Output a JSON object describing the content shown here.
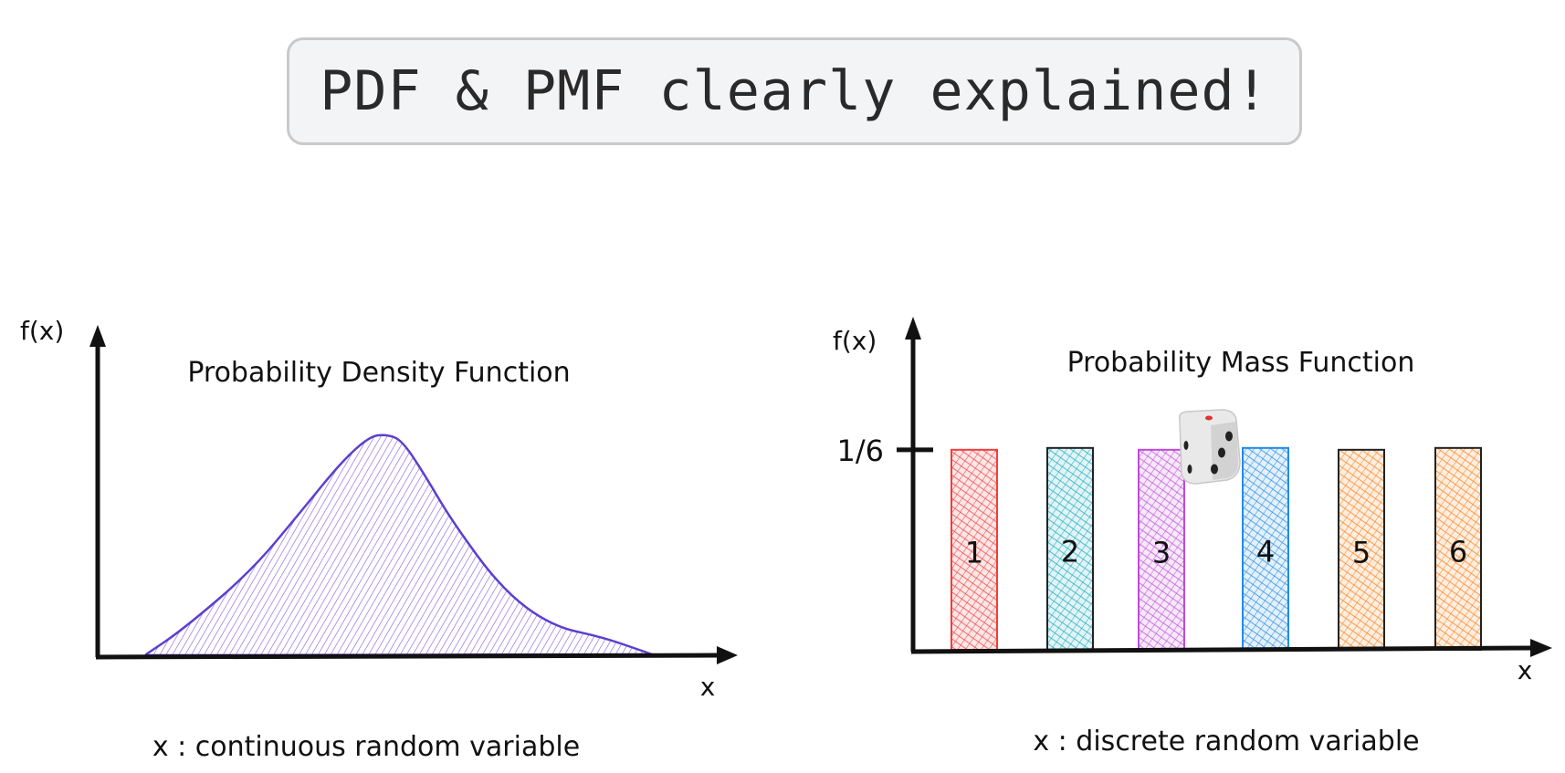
{
  "title": "PDF & PMF clearly explained!",
  "chart_data": [
    {
      "type": "area",
      "title": "Probability Density Function",
      "ylabel": "f(x)",
      "xlabel": "x",
      "caption": "x : continuous random variable",
      "shape": "unimodal, right-skewed",
      "color": "#6741d9",
      "grid": false
    },
    {
      "type": "bar",
      "title": "Probability Mass Function",
      "ylabel": "f(x)",
      "xlabel": "x",
      "caption": "x : discrete random variable",
      "ytick_label": "1/6",
      "ytick_value": 0.1667,
      "ylim": [
        0,
        0.27
      ],
      "categories": [
        "1",
        "2",
        "3",
        "4",
        "5",
        "6"
      ],
      "values": [
        0.1667,
        0.1667,
        0.1667,
        0.1667,
        0.1667,
        0.1667
      ],
      "colors": [
        "#f03e3e",
        "#15aabf",
        "#be4bdb",
        "#228be6",
        "#fd7e14",
        "#fd7e14"
      ],
      "icon": "dice-icon",
      "grid": false
    }
  ]
}
